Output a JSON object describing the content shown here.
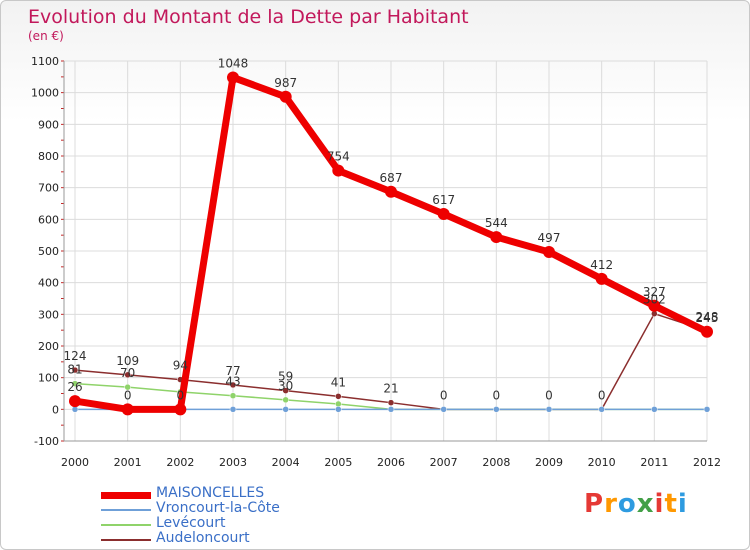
{
  "title": "Evolution du Montant de la Dette par Habitant",
  "subtitle": "(en €)",
  "logo": {
    "letters": [
      "P",
      "r",
      "o",
      "x",
      "i",
      "t",
      "i"
    ],
    "colors": [
      "#e53935",
      "#ff9800",
      "#2e9be0",
      "#43a047",
      "#e53935",
      "#ff9800",
      "#2e9be0"
    ]
  },
  "chart_data": {
    "type": "line",
    "x": [
      "2000",
      "2001",
      "2002",
      "2003",
      "2004",
      "2005",
      "2006",
      "2007",
      "2008",
      "2009",
      "2010",
      "2011",
      "2012"
    ],
    "ylim": [
      -100,
      1100
    ],
    "yticks": [
      -100,
      0,
      100,
      200,
      300,
      400,
      500,
      600,
      700,
      800,
      900,
      1000,
      1100
    ],
    "grid": true,
    "legend": "bottom",
    "series": [
      {
        "name": "MAISONCELLES",
        "color": "#ee0000",
        "width": 7,
        "marker": 6,
        "values": [
          26,
          0,
          0,
          1048,
          987,
          754,
          687,
          617,
          544,
          497,
          412,
          327,
          245
        ],
        "labels": [
          "26",
          "0",
          "0",
          "1048",
          "987",
          "754",
          "687",
          "617",
          "544",
          "497",
          "412",
          "327",
          "245"
        ]
      },
      {
        "name": "Vroncourt-la-Côte",
        "color": "#6fa0d8",
        "width": 1.5,
        "marker": 3,
        "values": [
          0,
          0,
          0,
          0,
          0,
          0,
          0,
          0,
          0,
          0,
          0,
          0,
          0
        ],
        "labels": [
          "",
          "",
          "",
          "",
          "",
          "",
          "",
          "",
          "",
          "",
          "",
          "",
          ""
        ]
      },
      {
        "name": "Levécourt",
        "color": "#8fd36a",
        "width": 1.5,
        "marker": 3,
        "values": [
          81,
          70,
          55,
          43,
          30,
          17,
          0,
          0,
          0,
          0,
          0,
          0,
          0
        ],
        "labels": [
          "81",
          "70",
          "",
          "43",
          "30",
          "",
          "",
          "",
          "",
          "",
          "",
          "",
          ""
        ]
      },
      {
        "name": "Audeloncourt",
        "color": "#8b2e2e",
        "width": 1.5,
        "marker": 3,
        "values": [
          124,
          109,
          94,
          77,
          59,
          41,
          21,
          0,
          0,
          0,
          0,
          302,
          248
        ],
        "labels": [
          "124",
          "109",
          "94",
          "77",
          "59",
          "41",
          "21",
          "0",
          "0",
          "0",
          "0",
          "302",
          "248"
        ]
      }
    ]
  }
}
